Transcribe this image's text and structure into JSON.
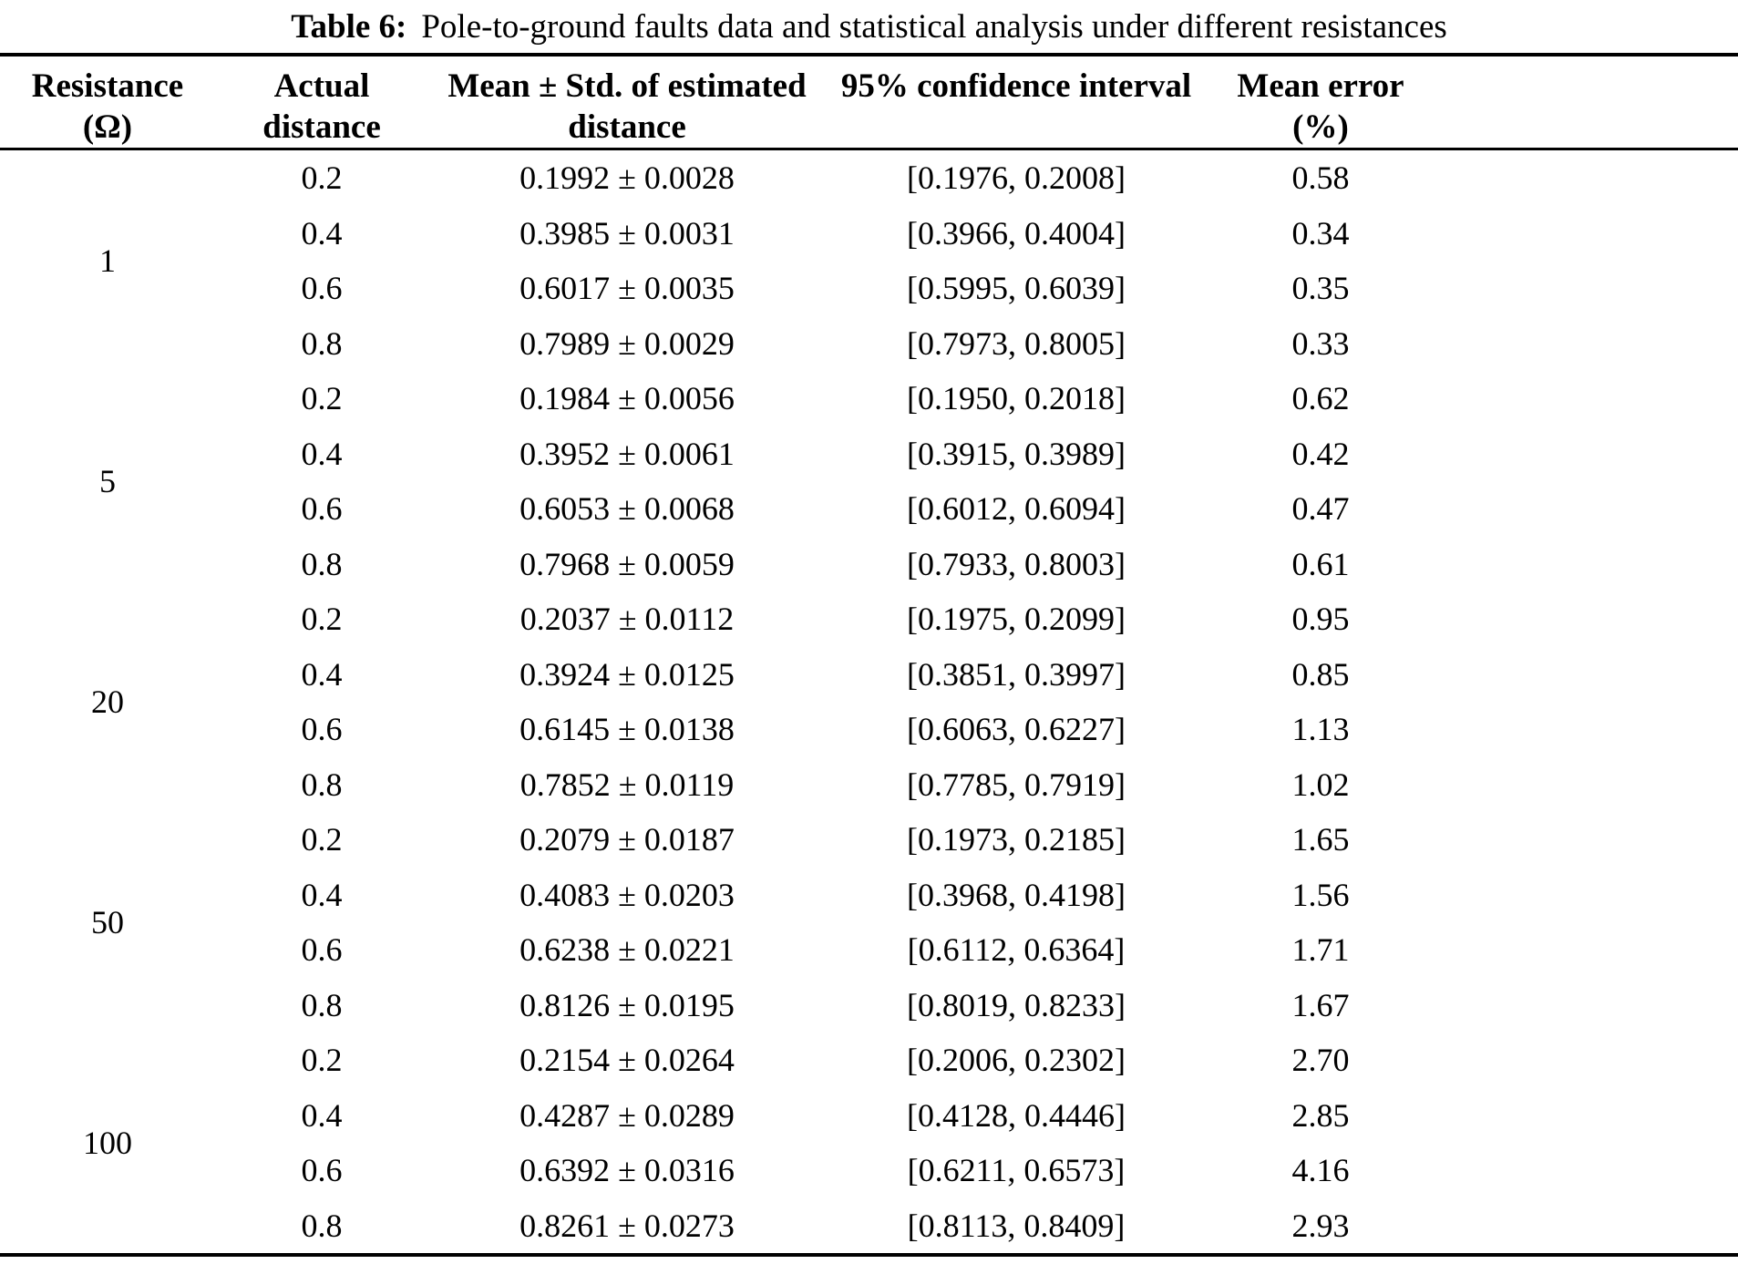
{
  "caption": {
    "label": "Table 6:",
    "text": "Pole-to-ground faults data and statistical analysis under different resistances"
  },
  "table": {
    "columns": [
      {
        "line1": "Resistance",
        "line2": "(Ω)"
      },
      {
        "line1": "Actual",
        "line2": "distance"
      },
      {
        "line1": "Mean ± Std. of estimated",
        "line2": "distance"
      },
      {
        "line1": "95% confidence interval",
        "line2": ""
      },
      {
        "line1": "Mean error",
        "line2": "(%)"
      }
    ],
    "groups": [
      {
        "resistance": "1",
        "rows": [
          {
            "actual": "0.2",
            "mean_std": "0.1992 ± 0.0028",
            "ci": "[0.1976, 0.2008]",
            "error": "0.58"
          },
          {
            "actual": "0.4",
            "mean_std": "0.3985 ± 0.0031",
            "ci": "[0.3966, 0.4004]",
            "error": "0.34"
          },
          {
            "actual": "0.6",
            "mean_std": "0.6017 ± 0.0035",
            "ci": "[0.5995, 0.6039]",
            "error": "0.35"
          },
          {
            "actual": "0.8",
            "mean_std": "0.7989 ± 0.0029",
            "ci": "[0.7973, 0.8005]",
            "error": "0.33"
          }
        ]
      },
      {
        "resistance": "5",
        "rows": [
          {
            "actual": "0.2",
            "mean_std": "0.1984 ± 0.0056",
            "ci": "[0.1950, 0.2018]",
            "error": "0.62"
          },
          {
            "actual": "0.4",
            "mean_std": "0.3952 ± 0.0061",
            "ci": "[0.3915, 0.3989]",
            "error": "0.42"
          },
          {
            "actual": "0.6",
            "mean_std": "0.6053 ± 0.0068",
            "ci": "[0.6012, 0.6094]",
            "error": "0.47"
          },
          {
            "actual": "0.8",
            "mean_std": "0.7968 ± 0.0059",
            "ci": "[0.7933, 0.8003]",
            "error": "0.61"
          }
        ]
      },
      {
        "resistance": "20",
        "rows": [
          {
            "actual": "0.2",
            "mean_std": "0.2037 ± 0.0112",
            "ci": "[0.1975, 0.2099]",
            "error": "0.95"
          },
          {
            "actual": "0.4",
            "mean_std": "0.3924 ± 0.0125",
            "ci": "[0.3851, 0.3997]",
            "error": "0.85"
          },
          {
            "actual": "0.6",
            "mean_std": "0.6145 ± 0.0138",
            "ci": "[0.6063, 0.6227]",
            "error": "1.13"
          },
          {
            "actual": "0.8",
            "mean_std": "0.7852 ± 0.0119",
            "ci": "[0.7785, 0.7919]",
            "error": "1.02"
          }
        ]
      },
      {
        "resistance": "50",
        "rows": [
          {
            "actual": "0.2",
            "mean_std": "0.2079 ± 0.0187",
            "ci": "[0.1973, 0.2185]",
            "error": "1.65"
          },
          {
            "actual": "0.4",
            "mean_std": "0.4083 ± 0.0203",
            "ci": "[0.3968, 0.4198]",
            "error": "1.56"
          },
          {
            "actual": "0.6",
            "mean_std": "0.6238 ± 0.0221",
            "ci": "[0.6112, 0.6364]",
            "error": "1.71"
          },
          {
            "actual": "0.8",
            "mean_std": "0.8126 ± 0.0195",
            "ci": "[0.8019, 0.8233]",
            "error": "1.67"
          }
        ]
      },
      {
        "resistance": "100",
        "rows": [
          {
            "actual": "0.2",
            "mean_std": "0.2154 ± 0.0264",
            "ci": "[0.2006, 0.2302]",
            "error": "2.70"
          },
          {
            "actual": "0.4",
            "mean_std": "0.4287 ± 0.0289",
            "ci": "[0.4128, 0.4446]",
            "error": "2.85"
          },
          {
            "actual": "0.6",
            "mean_std": "0.6392 ± 0.0316",
            "ci": "[0.6211, 0.6573]",
            "error": "4.16"
          },
          {
            "actual": "0.8",
            "mean_std": "0.8261 ± 0.0273",
            "ci": "[0.8113, 0.8409]",
            "error": "2.93"
          }
        ]
      }
    ]
  }
}
